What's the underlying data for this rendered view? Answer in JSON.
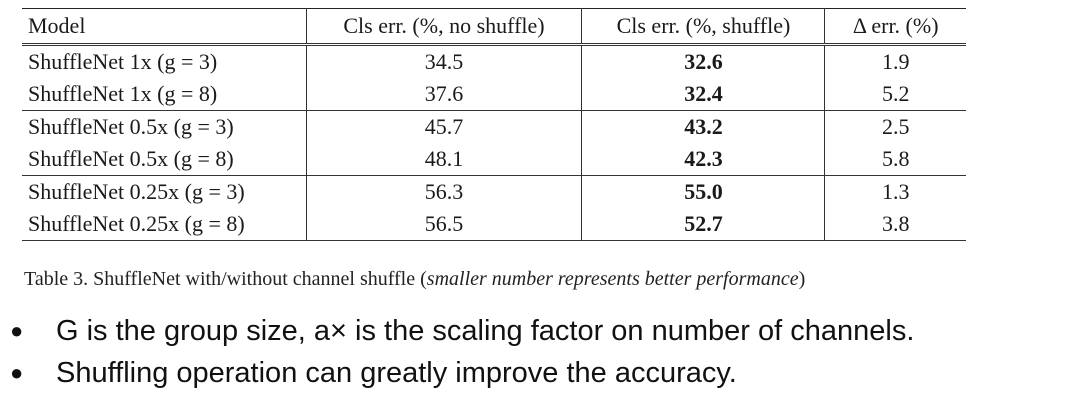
{
  "table": {
    "headers": {
      "model": "Model",
      "no_shuffle": "Cls err. (%, no shuffle)",
      "shuffle": "Cls err. (%, shuffle)",
      "delta": "Δ err. (%)"
    },
    "rows": [
      {
        "model": "ShuffleNet 1x (g = 3)",
        "no_shuffle": "34.5",
        "shuffle": "32.6",
        "delta": "1.9"
      },
      {
        "model": "ShuffleNet 1x (g = 8)",
        "no_shuffle": "37.6",
        "shuffle": "32.4",
        "delta": "5.2"
      },
      {
        "model": "ShuffleNet 0.5x (g = 3)",
        "no_shuffle": "45.7",
        "shuffle": "43.2",
        "delta": "2.5"
      },
      {
        "model": "ShuffleNet 0.5x (g = 8)",
        "no_shuffle": "48.1",
        "shuffle": "42.3",
        "delta": "5.8"
      },
      {
        "model": "ShuffleNet 0.25x (g = 3)",
        "no_shuffle": "56.3",
        "shuffle": "55.0",
        "delta": "1.3"
      },
      {
        "model": "ShuffleNet 0.25x (g = 8)",
        "no_shuffle": "56.5",
        "shuffle": "52.7",
        "delta": "3.8"
      }
    ]
  },
  "caption": {
    "main": "Table 3. ShuffleNet with/without channel shuffle (",
    "italic": "smaller number represents better performance",
    "end": ")"
  },
  "bullets": [
    "G is the group size, a× is the scaling factor on number of channels.",
    "Shuffling operation can greatly improve the accuracy."
  ]
}
